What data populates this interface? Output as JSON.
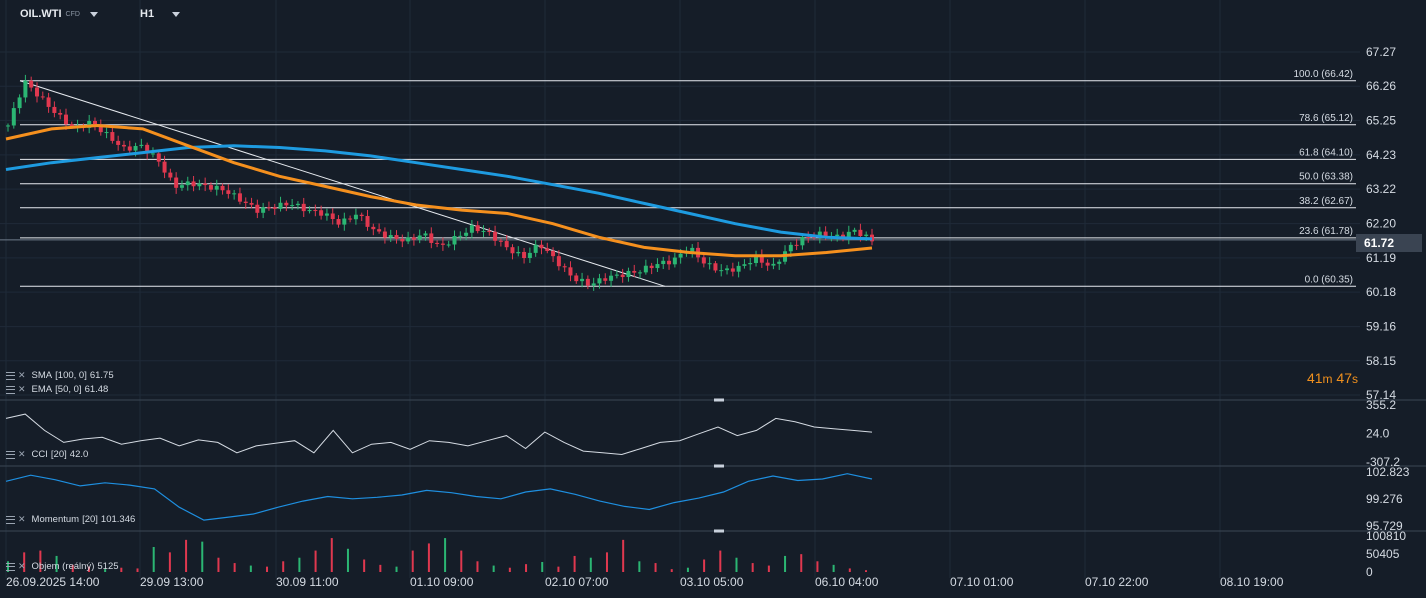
{
  "header": {
    "symbol": "OIL.WTI",
    "symbol_type": "CFD",
    "timeframe": "H1"
  },
  "timer": {
    "minutes": "41",
    "m_label": "m",
    "seconds": "47",
    "s_label": "s"
  },
  "indicators": {
    "sma": {
      "label": "SMA",
      "params": "[100, 0]",
      "value": "61.75"
    },
    "ema": {
      "label": "EMA",
      "params": "[50, 0]",
      "value": "61.48"
    },
    "cci": {
      "label": "CCI",
      "params": "[20]",
      "value": "42.0"
    },
    "momentum": {
      "label": "Momentum",
      "params": "[20]",
      "value": "101.346"
    },
    "volume": {
      "label": "Objem (reálný)",
      "value": "5125"
    }
  },
  "chart_data": {
    "type": "candlestick",
    "x_ticks": [
      "26.09.2025 14:00",
      "29.09 13:00",
      "30.09 11:00",
      "01.10 09:00",
      "02.10 07:00",
      "03.10 05:00",
      "06.10 04:00",
      "07.10 01:00",
      "07.10 22:00",
      "08.10 19:00"
    ],
    "price_ticks": [
      "67.27",
      "66.26",
      "65.25",
      "64.23",
      "63.22",
      "62.20",
      "61.19",
      "60.18",
      "59.16",
      "58.15",
      "57.14"
    ],
    "price_range": [
      57.14,
      67.27
    ],
    "last_price": "61.72",
    "fib_levels": [
      {
        "label": "100.0 (66.42)",
        "value": 66.42
      },
      {
        "label": "78.6 (65.12)",
        "value": 65.12
      },
      {
        "label": "61.8 (64.10)",
        "value": 64.1
      },
      {
        "label": "50.0 (63.38)",
        "value": 63.38
      },
      {
        "label": "38.2 (62.67)",
        "value": 62.67
      },
      {
        "label": "23.6 (61.78)",
        "value": 61.78
      },
      {
        "label": "0.0 (60.35)",
        "value": 60.35
      }
    ],
    "close_path": [
      65.1,
      66.4,
      65.9,
      65.4,
      65.0,
      65.2,
      64.8,
      64.4,
      64.5,
      64.1,
      63.3,
      63.4,
      63.3,
      63.2,
      62.9,
      62.6,
      62.7,
      62.8,
      62.6,
      62.5,
      62.2,
      62.5,
      62.0,
      61.8,
      61.7,
      61.9,
      61.5,
      61.8,
      62.1,
      61.9,
      61.5,
      61.2,
      61.6,
      61.1,
      60.6,
      60.4,
      60.6,
      60.7,
      60.8,
      61.0,
      61.1,
      61.5,
      61.0,
      60.8,
      60.9,
      61.2,
      60.9,
      61.5,
      61.8,
      61.9,
      61.8,
      62.0,
      61.7
    ],
    "sma_100": [
      63.8,
      64.0,
      64.15,
      64.3,
      64.45,
      64.5,
      64.45,
      64.35,
      64.2,
      64.0,
      63.8,
      63.6,
      63.35,
      63.1,
      62.8,
      62.5,
      62.2,
      61.95,
      61.8,
      61.75
    ],
    "ema_50": [
      64.7,
      65.0,
      65.1,
      65.0,
      64.5,
      64.0,
      63.6,
      63.3,
      63.0,
      62.75,
      62.6,
      62.5,
      62.2,
      61.8,
      61.5,
      61.35,
      61.25,
      61.25,
      61.35,
      61.48
    ],
    "cci_range": [
      -307.2,
      355.2
    ],
    "cci_ticks": [
      "355.2",
      "24.0",
      "-307.2"
    ],
    "cci": [
      200,
      250,
      60,
      -80,
      -40,
      -20,
      -100,
      -60,
      -30,
      -120,
      -50,
      -80,
      -200,
      -120,
      -90,
      -60,
      -200,
      60,
      -200,
      -100,
      -80,
      -160,
      -60,
      -80,
      -120,
      -60,
      0,
      -150,
      40,
      -80,
      -180,
      -200,
      -220,
      -150,
      -80,
      -60,
      20,
      100,
      0,
      60,
      200,
      160,
      100,
      80,
      60,
      40
    ],
    "momentum_range": [
      95.729,
      102.823
    ],
    "momentum_ticks": [
      "102.823",
      "99.276",
      "95.729"
    ],
    "momentum": [
      101.6,
      102.4,
      101.8,
      101.0,
      101.4,
      101.1,
      100.6,
      98.2,
      96.5,
      96.9,
      97.3,
      98.2,
      99.0,
      99.6,
      99.3,
      99.5,
      99.8,
      100.4,
      100.1,
      99.6,
      99.3,
      100.2,
      100.6,
      99.9,
      99.0,
      98.3,
      97.9,
      98.8,
      99.4,
      100.2,
      101.6,
      102.3,
      101.7,
      101.9,
      102.6,
      101.9
    ],
    "volume_ticks": [
      "100810",
      "50405",
      "0"
    ],
    "volume_max": 100810,
    "volume": [
      30000,
      55000,
      60000,
      45000,
      20000,
      15000,
      8000,
      12000,
      10000,
      70000,
      55000,
      90000,
      85000,
      40000,
      25000,
      18000,
      15000,
      30000,
      40000,
      60000,
      95000,
      65000,
      35000,
      20000,
      15000,
      60000,
      80000,
      95000,
      60000,
      30000,
      18000,
      12000,
      22000,
      28000,
      15000,
      45000,
      40000,
      55000,
      90000,
      30000,
      25000,
      8000,
      12000,
      35000,
      60000,
      40000,
      25000,
      18000,
      45000,
      50000,
      30000,
      20000,
      10000,
      5000
    ]
  }
}
